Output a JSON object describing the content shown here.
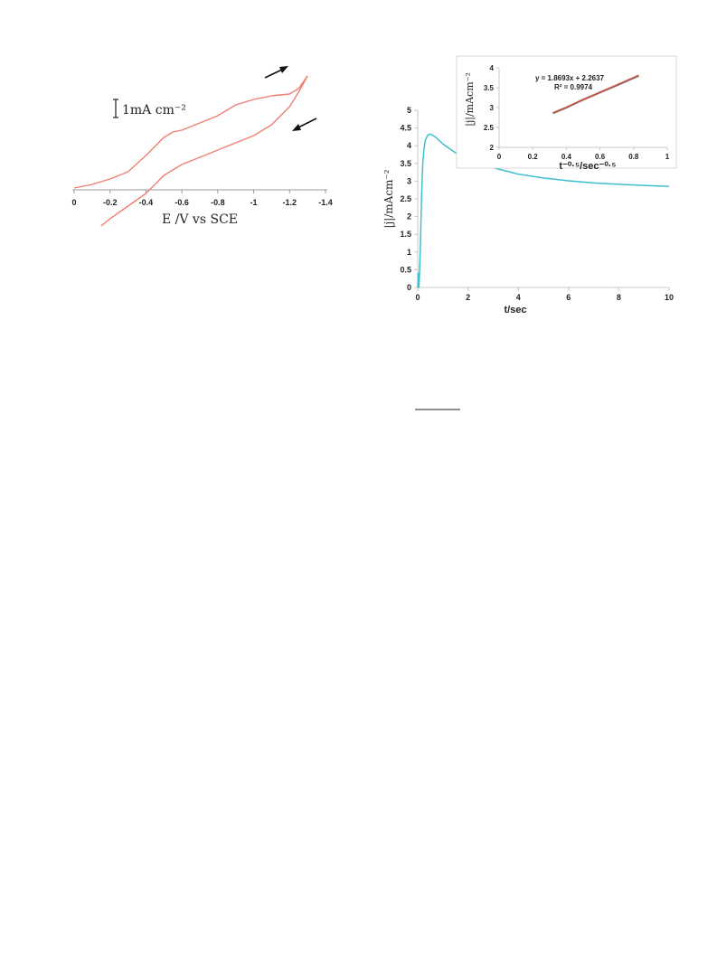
{
  "chart_data": [
    {
      "type": "line",
      "scale_bar_label": "1mA cm⁻²",
      "xlabel": "E /V vs SCE",
      "ylabel": "",
      "xlim": [
        0,
        -1.4
      ],
      "xticks": [
        "0",
        "-0.2",
        "-0.4",
        "-0.6",
        "-0.8",
        "-1",
        "-1.2",
        "-1.4"
      ],
      "xtick_values": [
        0,
        -0.2,
        -0.4,
        -0.6,
        -0.8,
        -1.0,
        -1.2,
        -1.4
      ],
      "y_units": "mA cm⁻² (relative, scale bar = 1)",
      "series": [
        {
          "role": "forward scan (upper branch)",
          "color": "#f07f72",
          "x": [
            0.0,
            -0.1,
            -0.2,
            -0.3,
            -0.4,
            -0.5,
            -0.55,
            -0.6,
            -0.7,
            -0.8,
            -0.9,
            -1.0,
            -1.1,
            -1.2,
            -1.25,
            -1.3
          ],
          "y": [
            0.1,
            0.3,
            0.6,
            1.0,
            1.9,
            2.9,
            3.2,
            3.3,
            3.7,
            4.1,
            4.7,
            5.0,
            5.2,
            5.3,
            5.6,
            6.3
          ]
        },
        {
          "role": "reverse scan (lower branch)",
          "color": "#f07f72",
          "x": [
            -1.3,
            -1.25,
            -1.2,
            -1.1,
            -1.0,
            -0.9,
            -0.8,
            -0.7,
            -0.6,
            -0.5,
            -0.45,
            -0.4,
            -0.3,
            -0.2,
            -0.15
          ],
          "y": [
            6.3,
            5.4,
            4.6,
            3.6,
            3.0,
            2.6,
            2.2,
            1.8,
            1.4,
            0.8,
            0.3,
            -0.2,
            -0.9,
            -1.6,
            -2.0
          ]
        }
      ],
      "arrows": [
        "forward direction",
        "reverse direction"
      ]
    },
    {
      "type": "line",
      "xlabel": "t/sec",
      "ylabel": "|j|/mAcm⁻²",
      "xlim": [
        0,
        10
      ],
      "ylim": [
        0,
        5
      ],
      "xticks": [
        "0",
        "2",
        "4",
        "6",
        "8",
        "10"
      ],
      "xtick_values": [
        0,
        2,
        4,
        6,
        8,
        10
      ],
      "yticks": [
        "0",
        "0.5",
        "1",
        "1.5",
        "2",
        "2.5",
        "3",
        "3.5",
        "4",
        "4.5",
        "5"
      ],
      "ytick_values": [
        0,
        0.5,
        1,
        1.5,
        2,
        2.5,
        3,
        3.5,
        4,
        4.5,
        5
      ],
      "series": [
        {
          "color": "#3ebfcf",
          "x": [
            0.0,
            0.02,
            0.05,
            0.1,
            0.15,
            0.2,
            0.25,
            0.3,
            0.4,
            0.5,
            0.7,
            1.0,
            1.5,
            2.0,
            3.0,
            4.0,
            5.0,
            6.0,
            7.0,
            8.0,
            9.0,
            10.0
          ],
          "y": [
            0.0,
            0.4,
            0.0,
            1.0,
            2.5,
            3.5,
            3.9,
            4.15,
            4.3,
            4.33,
            4.25,
            4.05,
            3.8,
            3.62,
            3.38,
            3.2,
            3.09,
            3.01,
            2.95,
            2.91,
            2.88,
            2.85
          ]
        }
      ]
    },
    {
      "type": "scatter",
      "role": "inset",
      "xlabel": "t⁻⁰·⁵/sec⁻⁰·⁵",
      "ylabel": "|j|/mAcm⁻²",
      "xlim": [
        0,
        1
      ],
      "ylim": [
        2,
        4
      ],
      "xticks": [
        "0",
        "0.2",
        "0.4",
        "0.6",
        "0.8",
        "1"
      ],
      "xtick_values": [
        0,
        0.2,
        0.4,
        0.6,
        0.8,
        1
      ],
      "yticks": [
        "2",
        "2.5",
        "3",
        "3.5",
        "4"
      ],
      "ytick_values": [
        2,
        2.5,
        3,
        3.5,
        4
      ],
      "equation": "y = 1.8693x + 2.2637",
      "r_squared": "R² = 0.9974",
      "series": [
        {
          "role": "data",
          "color": "#7a6a6a",
          "x": [
            0.32,
            0.4,
            0.5,
            0.6,
            0.7,
            0.83
          ],
          "y": [
            2.86,
            3.0,
            3.2,
            3.38,
            3.56,
            3.8
          ]
        },
        {
          "role": "linear fit",
          "color": "#e0503a",
          "x": [
            0.32,
            0.83
          ],
          "y": [
            2.862,
            3.815
          ]
        }
      ]
    }
  ]
}
